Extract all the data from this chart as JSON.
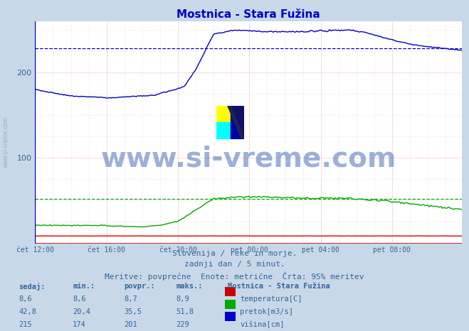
{
  "title": "Mostnica - Stara Fužina",
  "title_color": "#0000cc",
  "bg_color": "#c8d8e8",
  "plot_bg_color": "#ffffff",
  "grid_color_red": "#ffaaaa",
  "grid_color_minor": "#f0d0d0",
  "xlim": [
    0,
    287
  ],
  "ylim": [
    0,
    260
  ],
  "ytick_vals": [
    100,
    200
  ],
  "xtick_labels": [
    "čet 12:00",
    "čet 16:00",
    "čet 20:00",
    "pet 00:00",
    "pet 04:00",
    "pet 08:00"
  ],
  "xtick_positions": [
    0,
    48,
    96,
    144,
    192,
    240
  ],
  "tick_color": "#336699",
  "temp_color": "#dd0000",
  "flow_color": "#00aa00",
  "height_color": "#0000bb",
  "dashed_height_y": 229,
  "dashed_height_color": "#0000bb",
  "dashed_flow_y": 51.8,
  "dashed_flow_color": "#00aa00",
  "watermark_text": "www.si-vreme.com",
  "watermark_color": "#2255aa",
  "watermark_alpha": 0.45,
  "watermark_fontsize": 28,
  "footer_line1": "Slovenija / reke in morje.",
  "footer_line2": "zadnji dan / 5 minut.",
  "footer_line3": "Meritve: povprečne  Enote: metrične  Črta: 95% meritev",
  "footer_color": "#336699",
  "footer_fontsize": 8,
  "table_header": [
    "sedaj:",
    "min.:",
    "povpr.:",
    "maks.:"
  ],
  "table_label": "Mostnica - Stara Fužina",
  "table_rows": [
    {
      "sedaj": "8,6",
      "min": "8,6",
      "povpr": "8,7",
      "maks": "8,9",
      "color": "#cc0000",
      "label": "temperatura[C]"
    },
    {
      "sedaj": "42,8",
      "min": "20,4",
      "povpr": "35,5",
      "maks": "51,8",
      "color": "#00aa00",
      "label": "pretok[m3/s]"
    },
    {
      "sedaj": "215",
      "min": "174",
      "povpr": "201",
      "maks": "229",
      "color": "#0000cc",
      "label": "višina[cm]"
    }
  ],
  "axis_line_color": "#cc0000",
  "left_arrow_color": "#cc0000",
  "right_arrow_color": "#cc0000"
}
